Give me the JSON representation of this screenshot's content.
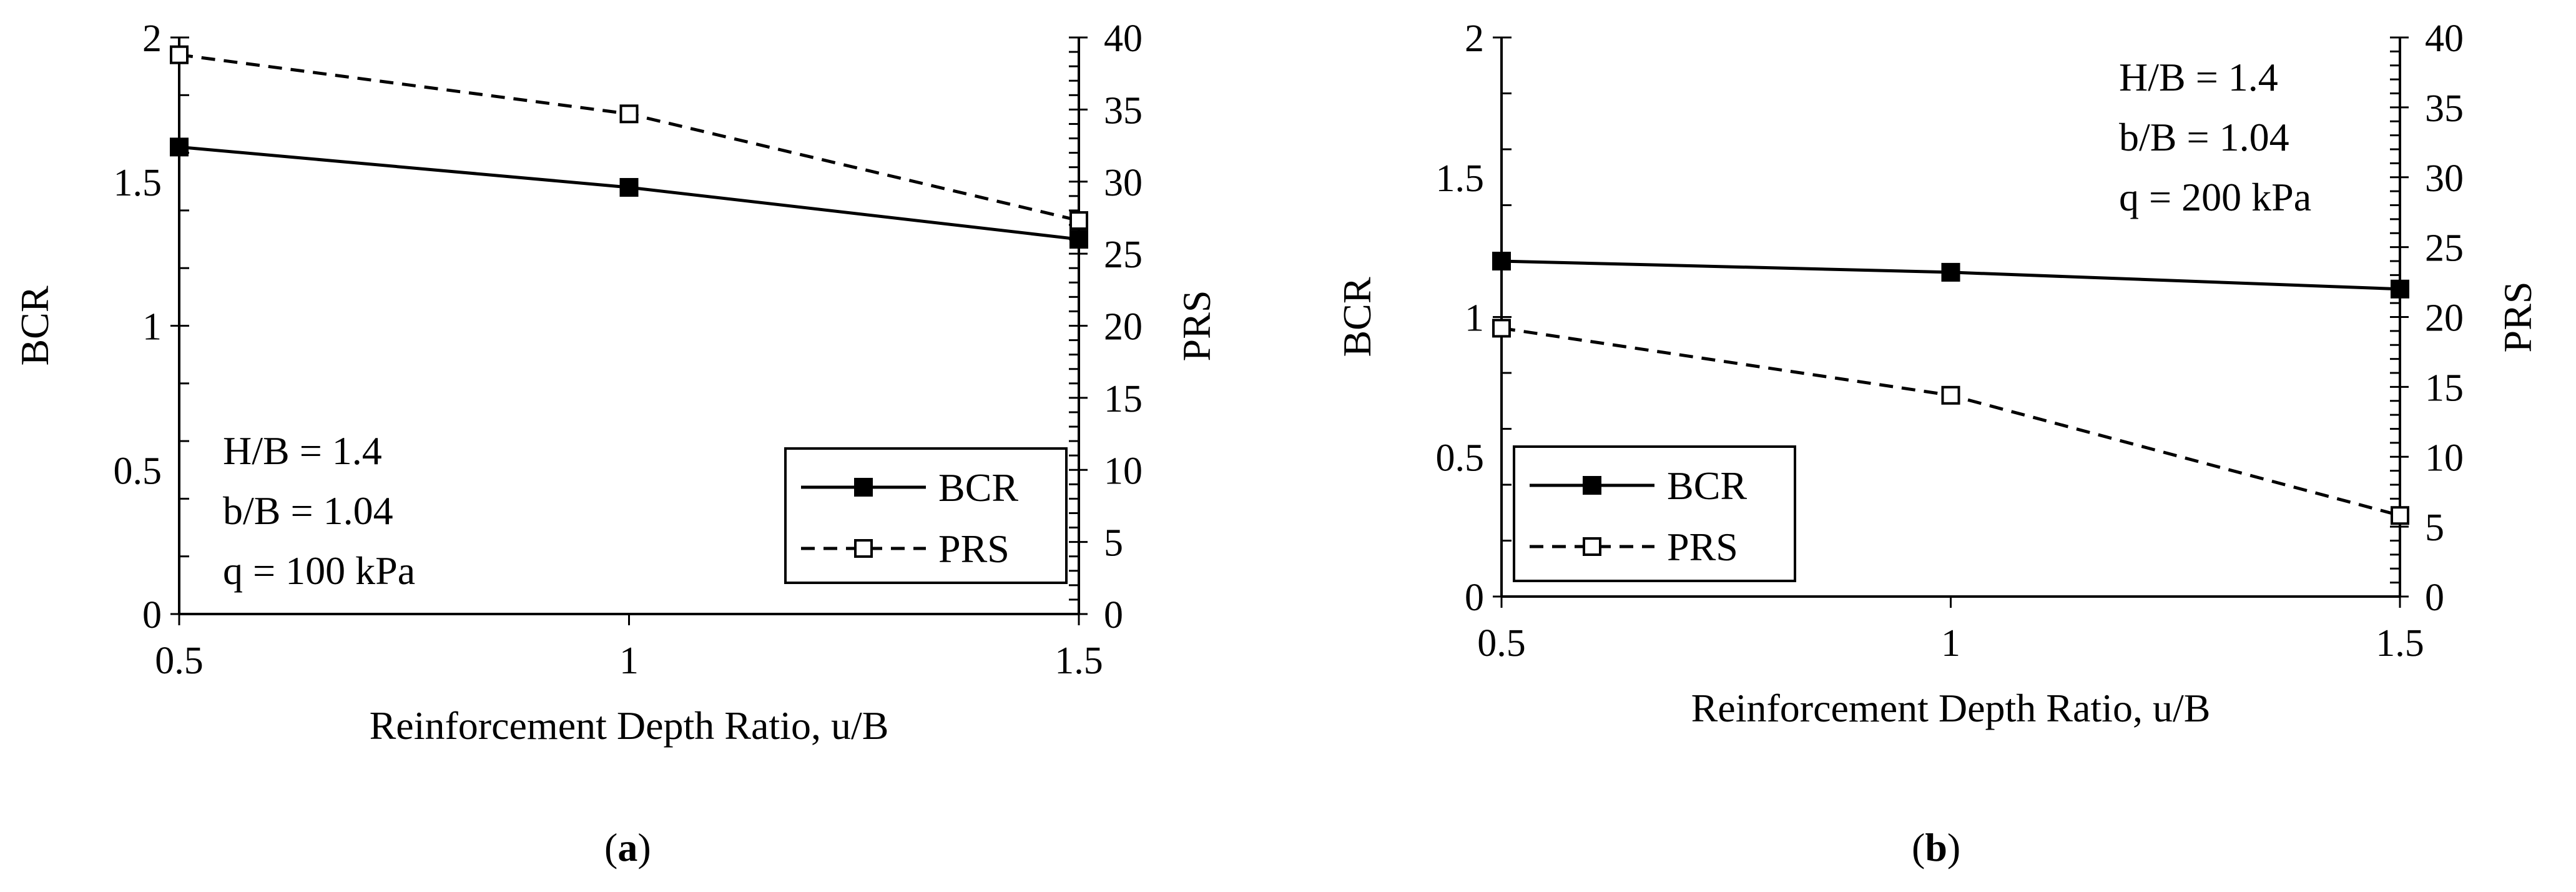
{
  "chart_data": [
    {
      "panel": "(a)",
      "panel_letter": "a",
      "type": "line",
      "x": [
        0.5,
        1,
        1.5
      ],
      "xlabel": "Reinforcement Depth Ratio, u/B",
      "xlim": [
        0.5,
        1.5
      ],
      "xticks": [
        "0.5",
        "1",
        "1.5"
      ],
      "ylabel_left": "BCR",
      "ylim_left": [
        0,
        2
      ],
      "yticks_left": [
        "0",
        "0.5",
        "1",
        "1.5",
        "2"
      ],
      "ylabel_right": "PRS",
      "ylim_right": [
        0,
        40
      ],
      "yticks_right": [
        "0",
        "5",
        "10",
        "15",
        "20",
        "25",
        "30",
        "35",
        "40"
      ],
      "series": [
        {
          "name": "BCR",
          "axis": "left",
          "values": [
            1.62,
            1.48,
            1.3
          ],
          "marker": "filled-square",
          "line": "solid",
          "color": "#000000"
        },
        {
          "name": "PRS",
          "axis": "right",
          "values": [
            38.8,
            34.7,
            27.3
          ],
          "marker": "open-square",
          "line": "dashed",
          "color": "#000000"
        }
      ],
      "annotation": [
        "H/B = 1.4",
        "b/B = 1.04",
        "q = 100 kPa"
      ],
      "annotation_placement": "bottom-left",
      "legend_placement": "bottom-right",
      "grid": false
    },
    {
      "panel": "(b)",
      "panel_letter": "b",
      "type": "line",
      "x": [
        0.5,
        1,
        1.5
      ],
      "xlabel": "Reinforcement Depth Ratio, u/B",
      "xlim": [
        0.5,
        1.5
      ],
      "xticks": [
        "0.5",
        "1",
        "1.5"
      ],
      "ylabel_left": "BCR",
      "ylim_left": [
        0,
        2
      ],
      "yticks_left": [
        "0",
        "0.5",
        "1",
        "1.5",
        "2"
      ],
      "ylabel_right": "PRS",
      "ylim_right": [
        0,
        40
      ],
      "yticks_right": [
        "0",
        "5",
        "10",
        "15",
        "20",
        "25",
        "30",
        "35",
        "40"
      ],
      "series": [
        {
          "name": "BCR",
          "axis": "left",
          "values": [
            1.2,
            1.16,
            1.1
          ],
          "marker": "filled-square",
          "line": "solid",
          "color": "#000000"
        },
        {
          "name": "PRS",
          "axis": "right",
          "values": [
            19.2,
            14.4,
            5.8
          ],
          "marker": "open-square",
          "line": "dashed",
          "color": "#000000"
        }
      ],
      "annotation": [
        "H/B = 1.4",
        "b/B = 1.04",
        "q = 200 kPa"
      ],
      "annotation_placement": "top-right",
      "legend_placement": "bottom-left",
      "grid": false
    }
  ]
}
